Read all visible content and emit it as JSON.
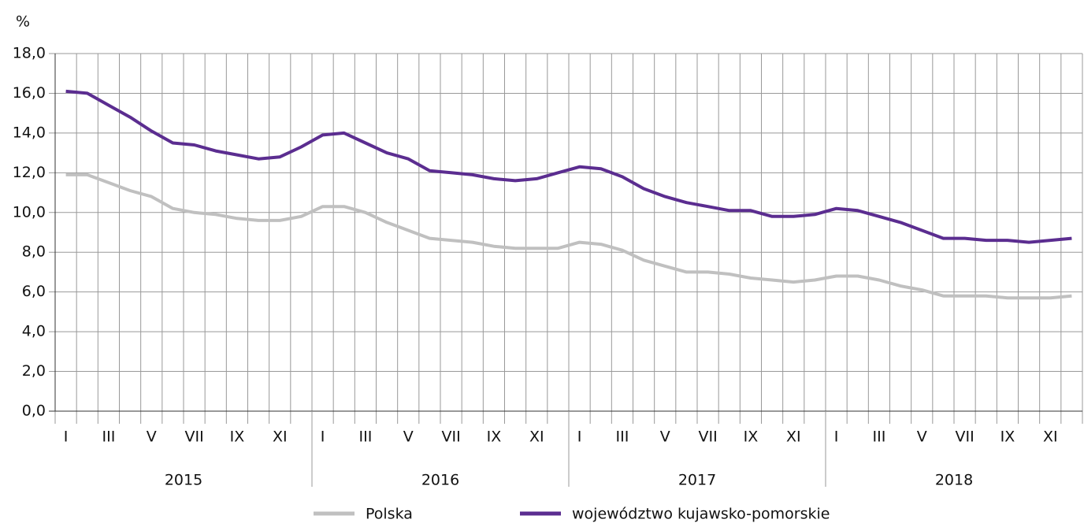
{
  "chart_data": {
    "type": "line",
    "y_label": "%",
    "categories": [
      "I",
      null,
      "III",
      null,
      "V",
      null,
      "VII",
      null,
      "IX",
      null,
      "XI",
      null,
      "I",
      null,
      "III",
      null,
      "V",
      null,
      "VII",
      null,
      "IX",
      null,
      "XI",
      null,
      "I",
      null,
      "III",
      null,
      "V",
      null,
      "VII",
      null,
      "IX",
      null,
      "XI",
      null,
      "I",
      null,
      "III",
      null,
      "V",
      null,
      "VII",
      null,
      "IX",
      null,
      "XI",
      null
    ],
    "x_groups": [
      "2015",
      "2016",
      "2017",
      "2018"
    ],
    "series": [
      {
        "name": "Polska",
        "color": "#c0c0c0",
        "values": [
          11.9,
          11.9,
          11.5,
          11.1,
          10.8,
          10.2,
          10.0,
          9.9,
          9.7,
          9.6,
          9.6,
          9.8,
          10.3,
          10.3,
          10.0,
          9.5,
          9.1,
          8.7,
          8.6,
          8.5,
          8.3,
          8.2,
          8.2,
          8.2,
          8.5,
          8.4,
          8.1,
          7.6,
          7.3,
          7.0,
          7.0,
          6.9,
          6.7,
          6.6,
          6.5,
          6.6,
          6.8,
          6.8,
          6.6,
          6.3,
          6.1,
          5.8,
          5.8,
          5.8,
          5.7,
          5.7,
          5.7,
          5.8
        ]
      },
      {
        "name": "województwo kujawsko-pomorskie",
        "color": "#5b2d90",
        "values": [
          16.1,
          16.0,
          15.4,
          14.8,
          14.1,
          13.5,
          13.4,
          13.1,
          12.9,
          12.7,
          12.8,
          13.3,
          13.9,
          14.0,
          13.5,
          13.0,
          12.7,
          12.1,
          12.0,
          11.9,
          11.7,
          11.6,
          11.7,
          12.0,
          12.3,
          12.2,
          11.8,
          11.2,
          10.8,
          10.5,
          10.3,
          10.1,
          10.1,
          9.8,
          9.8,
          9.9,
          10.2,
          10.1,
          9.8,
          9.5,
          9.1,
          8.7,
          8.7,
          8.6,
          8.6,
          8.5,
          8.6,
          8.7
        ]
      }
    ],
    "ylim": [
      0,
      18
    ],
    "yticks": [
      {
        "value": 0,
        "label": "0,0"
      },
      {
        "value": 2,
        "label": "2,0"
      },
      {
        "value": 4,
        "label": "4,0"
      },
      {
        "value": 6,
        "label": "6,0"
      },
      {
        "value": 8,
        "label": "8,0"
      },
      {
        "value": 10,
        "label": "10,0"
      },
      {
        "value": 12,
        "label": "12,0"
      },
      {
        "value": 14,
        "label": "14,0"
      },
      {
        "value": 16,
        "label": "16,0"
      },
      {
        "value": 18,
        "label": "18,0"
      }
    ],
    "grid": true,
    "legend": "bottom"
  }
}
